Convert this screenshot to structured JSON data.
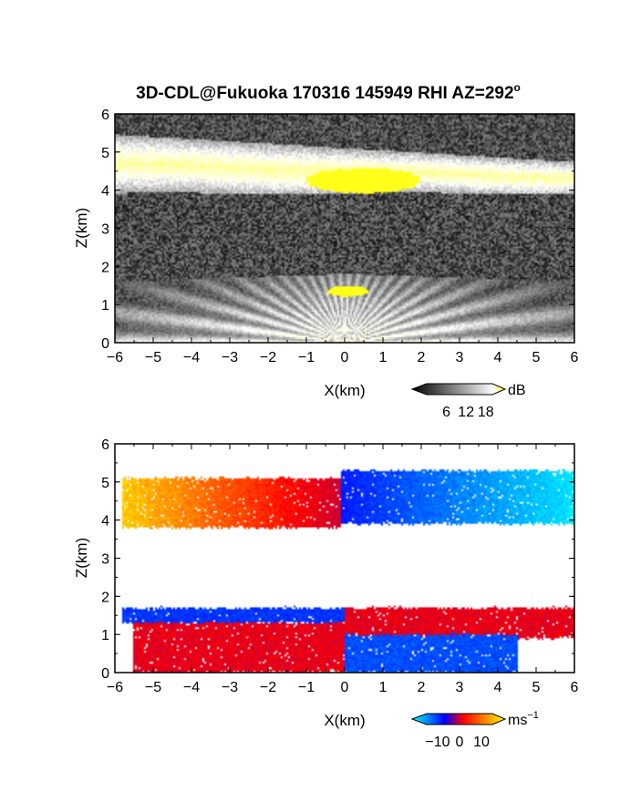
{
  "title": "3D-CDL@Fukuoka 170316 145949 RHI AZ=292",
  "title_degree": "o",
  "chart_data": [
    {
      "type": "heatmap",
      "quantity": "backscatter intensity",
      "xlabel": "X(km)",
      "ylabel": "Z(km)",
      "xlim": [
        -6,
        6
      ],
      "ylim": [
        0,
        6
      ],
      "xticks": [
        -6,
        -5,
        -4,
        -3,
        -2,
        -1,
        0,
        1,
        2,
        3,
        4,
        5,
        6
      ],
      "yticks": [
        0,
        1,
        2,
        3,
        4,
        5,
        6
      ],
      "colorbar": {
        "unit": "dB",
        "ticks": [
          6,
          12,
          18
        ],
        "range": [
          0,
          20
        ],
        "colors": [
          "#000000",
          "#ffffff",
          "#ffff00"
        ]
      },
      "features": [
        {
          "kind": "layer",
          "x": [
            -6,
            6
          ],
          "z_bottom": 3.9,
          "z_top": 5.1,
          "level_db": 12
        },
        {
          "kind": "layer",
          "x": [
            -6,
            6
          ],
          "z_bottom": 0.0,
          "z_top": 1.8,
          "level_db": 11
        },
        {
          "kind": "saturated",
          "x": [
            -1.1,
            2.1
          ],
          "z_bottom": 3.9,
          "z_top": 4.6,
          "level_db": 19
        },
        {
          "kind": "saturated",
          "x": [
            -0.5,
            0.7
          ],
          "z_bottom": 1.2,
          "z_top": 1.5,
          "level_db": 19
        },
        {
          "kind": "noise",
          "z_bottom": 2.0,
          "z_top": 3.9,
          "level_db": 3
        }
      ]
    },
    {
      "type": "heatmap",
      "quantity": "radial velocity",
      "xlabel": "X(km)",
      "ylabel": "Z(km)",
      "xlim": [
        -6,
        6
      ],
      "ylim": [
        0,
        6
      ],
      "xticks": [
        -6,
        -5,
        -4,
        -3,
        -2,
        -1,
        0,
        1,
        2,
        3,
        4,
        5,
        6
      ],
      "yticks": [
        0,
        1,
        2,
        3,
        4,
        5,
        6
      ],
      "colorbar": {
        "unit": "ms",
        "unit_exponent": "−1",
        "ticks": [
          -10,
          0,
          10
        ],
        "range": [
          -15,
          15
        ],
        "colors": [
          "#00ffff",
          "#0000ff",
          "#ff0000",
          "#ffff00"
        ]
      },
      "features": [
        {
          "kind": "upper-layer",
          "x": [
            -5.8,
            -0.1
          ],
          "z_bottom": 3.8,
          "z_top": 5.1,
          "velocity_ms": [
            13,
            3
          ]
        },
        {
          "kind": "upper-layer",
          "x": [
            -0.1,
            6.0
          ],
          "z_bottom": 3.9,
          "z_top": 5.3,
          "velocity_ms": [
            -6,
            -14
          ]
        },
        {
          "kind": "lower-layer",
          "x": [
            -5.8,
            0.0
          ],
          "z_bottom": 1.3,
          "z_top": 1.7,
          "velocity_ms": -7
        },
        {
          "kind": "lower-layer",
          "x": [
            -5.5,
            0.0
          ],
          "z_bottom": 0.0,
          "z_top": 1.3,
          "velocity_ms": 4
        },
        {
          "kind": "lower-layer",
          "x": [
            0.0,
            6.0
          ],
          "z_bottom": 0.9,
          "z_top": 1.7,
          "velocity_ms": 4
        },
        {
          "kind": "lower-layer",
          "x": [
            0.0,
            4.5
          ],
          "z_bottom": 0.0,
          "z_top": 1.0,
          "velocity_ms": -8
        }
      ]
    }
  ]
}
